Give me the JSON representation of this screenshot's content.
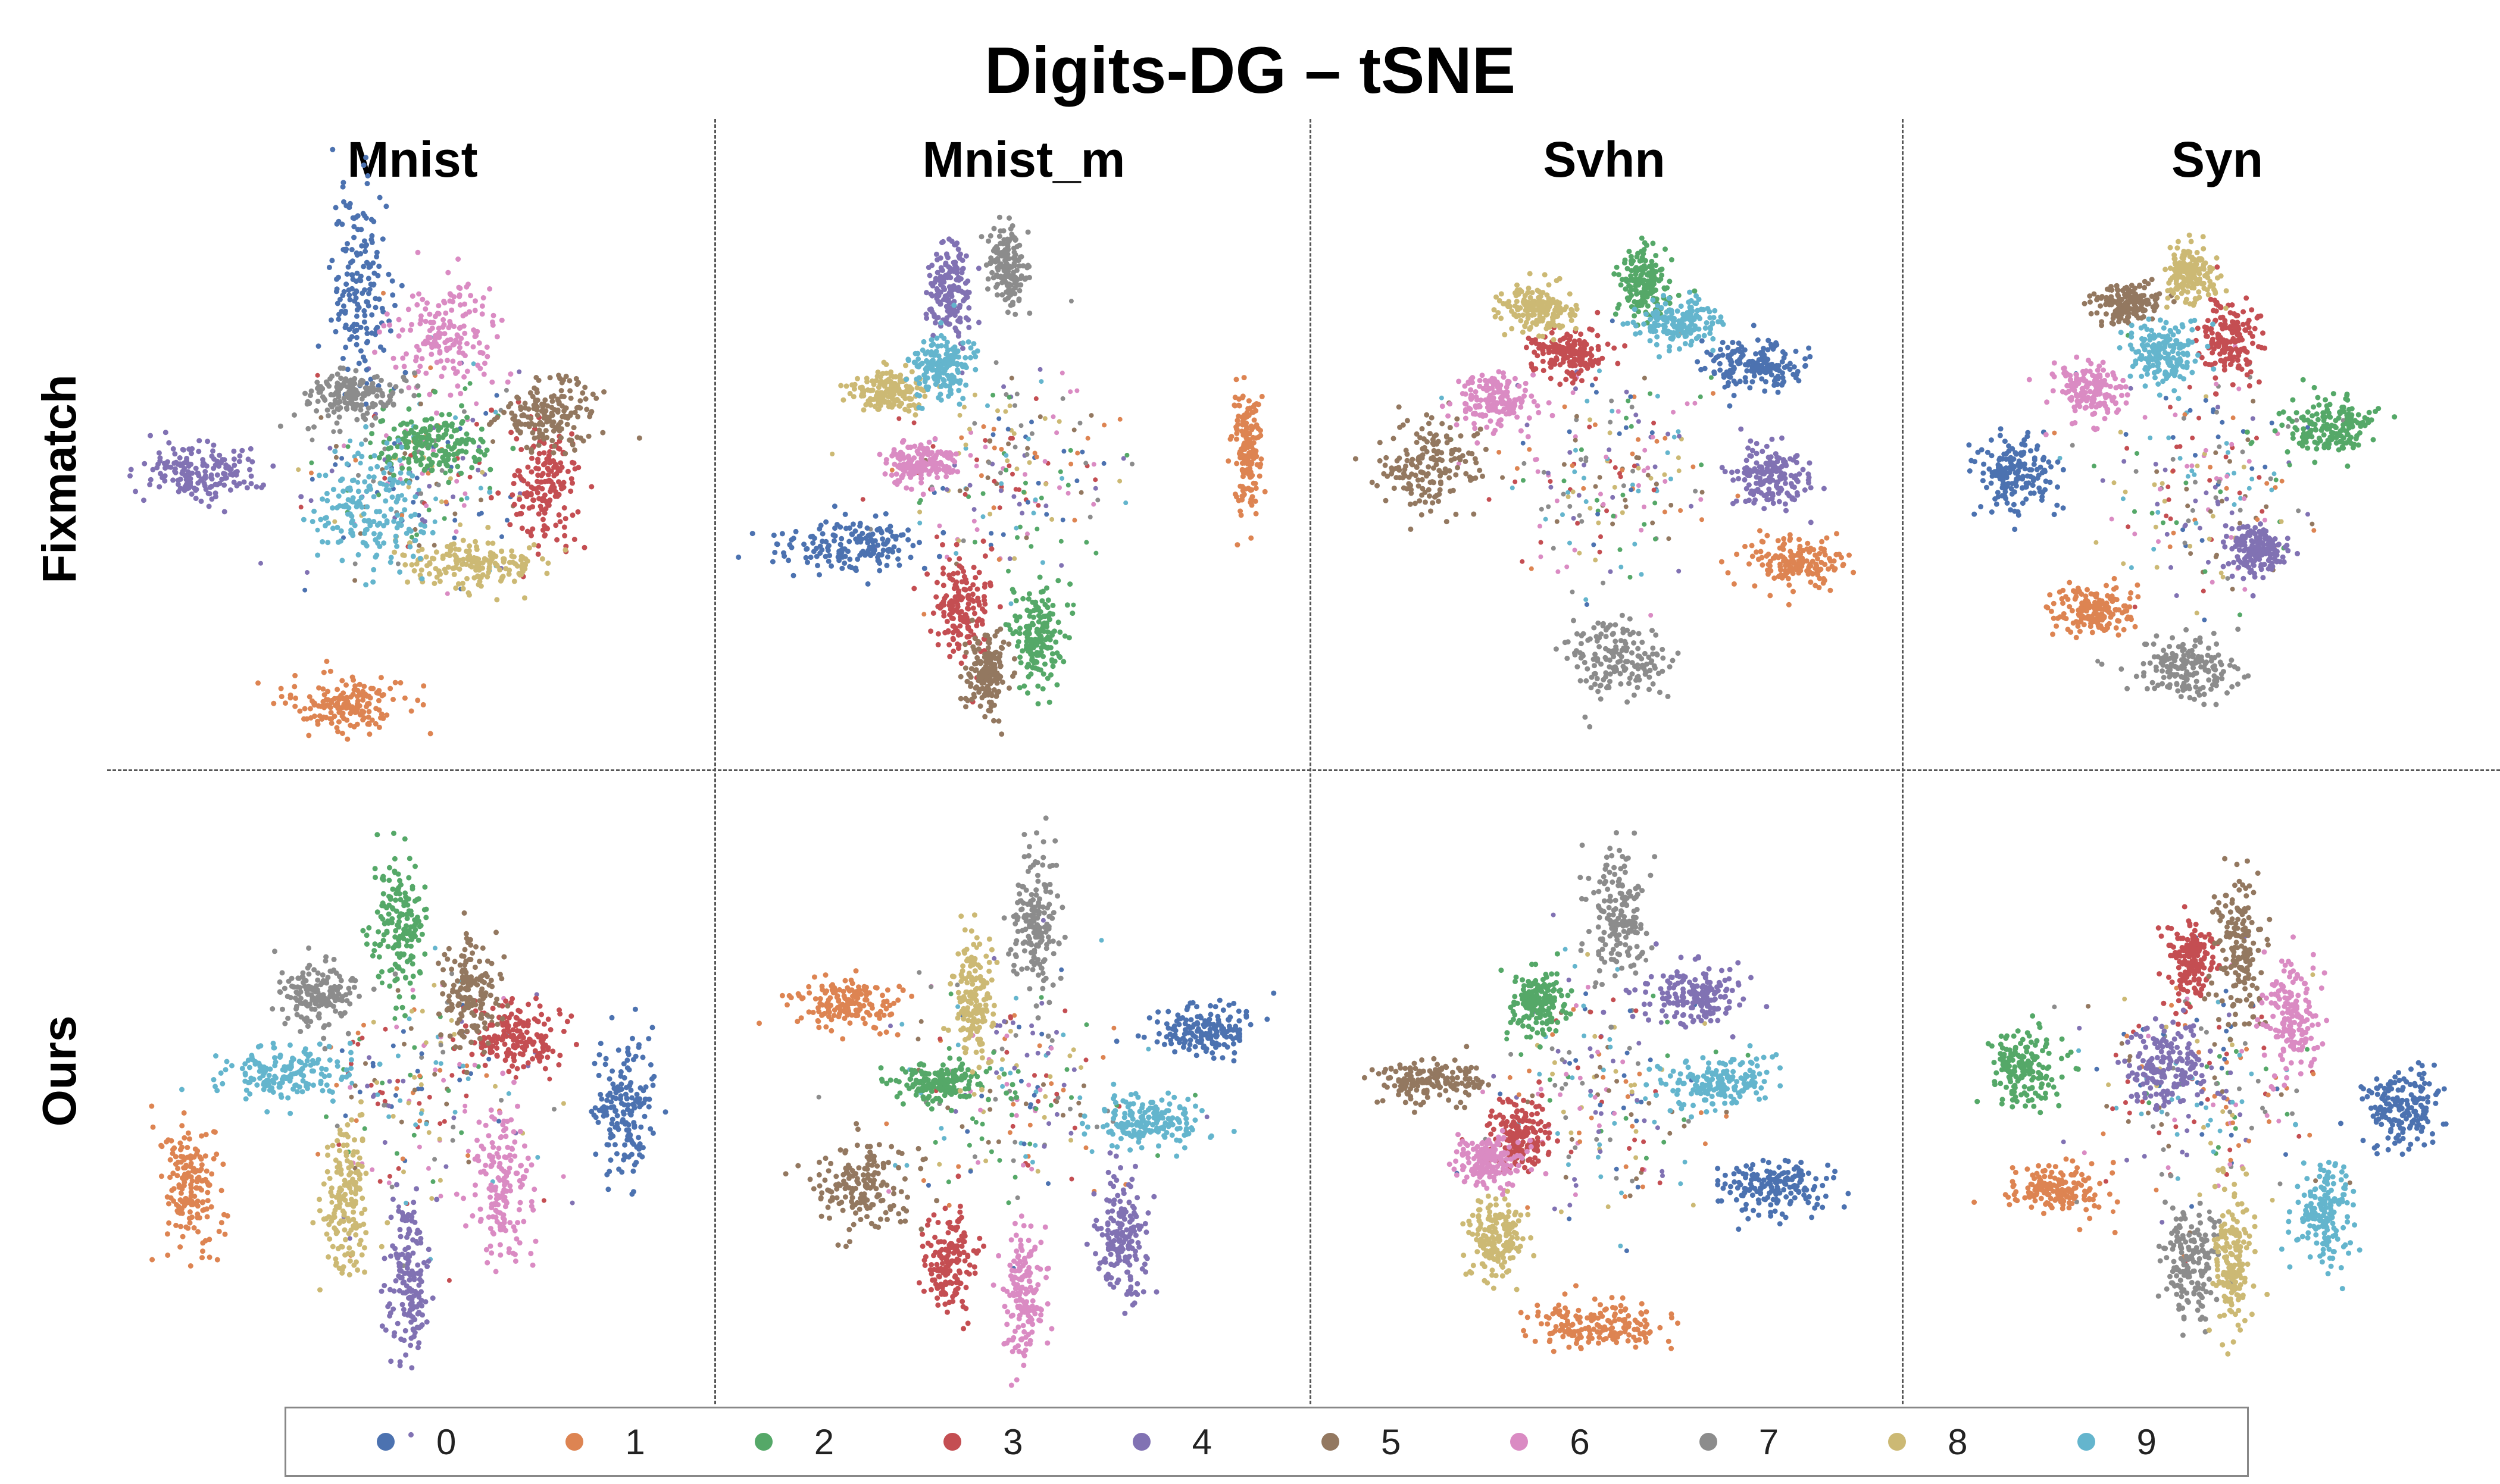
{
  "title": "Digits-DG –  tSNE",
  "columns": [
    "Mnist",
    "Mnist_m",
    "Svhn",
    "Syn"
  ],
  "rows": [
    "Fixmatch",
    "Ours"
  ],
  "legend": [
    {
      "label": "0",
      "color": "#4C72B0"
    },
    {
      "label": "1",
      "color": "#DD8452"
    },
    {
      "label": "2",
      "color": "#55A868"
    },
    {
      "label": "3",
      "color": "#C44E52"
    },
    {
      "label": "4",
      "color": "#8172B3"
    },
    {
      "label": "5",
      "color": "#937860"
    },
    {
      "label": "6",
      "color": "#DA8BC3"
    },
    {
      "label": "7",
      "color": "#8C8C8C"
    },
    {
      "label": "8",
      "color": "#CCB974"
    },
    {
      "label": "9",
      "color": "#64B5CD"
    }
  ],
  "chart_data": {
    "type": "scatter",
    "title": "Digits-DG –  tSNE",
    "grid": false,
    "legend_position": "bottom",
    "panels": [
      {
        "row": "Fixmatch",
        "column": "Mnist",
        "clusters": [
          {
            "class": "0",
            "x": -0.25,
            "y": 0.78,
            "sx": 0.06,
            "sy": 0.2
          },
          {
            "class": "1",
            "x": -0.32,
            "y": -0.92,
            "sx": 0.12,
            "sy": 0.06
          },
          {
            "class": "2",
            "x": 0.05,
            "y": 0.12,
            "sx": 0.12,
            "sy": 0.07
          },
          {
            "class": "3",
            "x": 0.5,
            "y": -0.05,
            "sx": 0.07,
            "sy": 0.12
          },
          {
            "class": "4",
            "x": -0.9,
            "y": 0.02,
            "sx": 0.12,
            "sy": 0.06
          },
          {
            "class": "5",
            "x": 0.52,
            "y": 0.25,
            "sx": 0.1,
            "sy": 0.07
          },
          {
            "class": "6",
            "x": 0.1,
            "y": 0.58,
            "sx": 0.11,
            "sy": 0.1
          },
          {
            "class": "7",
            "x": -0.28,
            "y": 0.32,
            "sx": 0.1,
            "sy": 0.05
          },
          {
            "class": "8",
            "x": 0.22,
            "y": -0.35,
            "sx": 0.14,
            "sy": 0.05
          },
          {
            "class": "9",
            "x": -0.22,
            "y": -0.15,
            "sx": 0.13,
            "sy": 0.12
          }
        ]
      },
      {
        "row": "Fixmatch",
        "column": "Mnist_m",
        "clusters": [
          {
            "class": "0",
            "x": -0.65,
            "y": -0.28,
            "sx": 0.15,
            "sy": 0.05
          },
          {
            "class": "1",
            "x": 0.95,
            "y": 0.1,
            "sx": 0.03,
            "sy": 0.12
          },
          {
            "class": "2",
            "x": 0.1,
            "y": -0.65,
            "sx": 0.05,
            "sy": 0.1
          },
          {
            "class": "3",
            "x": -0.2,
            "y": -0.55,
            "sx": 0.06,
            "sy": 0.1
          },
          {
            "class": "4",
            "x": -0.25,
            "y": 0.75,
            "sx": 0.05,
            "sy": 0.1
          },
          {
            "class": "5",
            "x": -0.1,
            "y": -0.8,
            "sx": 0.04,
            "sy": 0.08
          },
          {
            "class": "6",
            "x": -0.38,
            "y": 0.05,
            "sx": 0.07,
            "sy": 0.04
          },
          {
            "class": "7",
            "x": -0.02,
            "y": 0.85,
            "sx": 0.04,
            "sy": 0.08
          },
          {
            "class": "8",
            "x": -0.5,
            "y": 0.35,
            "sx": 0.07,
            "sy": 0.04
          },
          {
            "class": "9",
            "x": -0.28,
            "y": 0.45,
            "sx": 0.06,
            "sy": 0.06
          }
        ]
      },
      {
        "row": "Fixmatch",
        "column": "Svhn",
        "clusters": [
          {
            "class": "0",
            "x": 0.6,
            "y": 0.45,
            "sx": 0.1,
            "sy": 0.05
          },
          {
            "class": "1",
            "x": 0.75,
            "y": -0.35,
            "sx": 0.1,
            "sy": 0.05
          },
          {
            "class": "2",
            "x": 0.15,
            "y": 0.78,
            "sx": 0.05,
            "sy": 0.07
          },
          {
            "class": "3",
            "x": -0.15,
            "y": 0.5,
            "sx": 0.08,
            "sy": 0.05
          },
          {
            "class": "4",
            "x": 0.65,
            "y": 0.0,
            "sx": 0.08,
            "sy": 0.06
          },
          {
            "class": "5",
            "x": -0.72,
            "y": 0.05,
            "sx": 0.1,
            "sy": 0.1
          },
          {
            "class": "6",
            "x": -0.45,
            "y": 0.3,
            "sx": 0.08,
            "sy": 0.06
          },
          {
            "class": "7",
            "x": 0.05,
            "y": -0.75,
            "sx": 0.1,
            "sy": 0.08
          },
          {
            "class": "8",
            "x": -0.28,
            "y": 0.68,
            "sx": 0.07,
            "sy": 0.05
          },
          {
            "class": "9",
            "x": 0.3,
            "y": 0.62,
            "sx": 0.08,
            "sy": 0.05
          }
        ]
      },
      {
        "row": "Fixmatch",
        "column": "Syn",
        "clusters": [
          {
            "class": "0",
            "x": -0.75,
            "y": 0.0,
            "sx": 0.08,
            "sy": 0.08
          },
          {
            "class": "1",
            "x": -0.45,
            "y": -0.55,
            "sx": 0.08,
            "sy": 0.05
          },
          {
            "class": "2",
            "x": 0.5,
            "y": 0.2,
            "sx": 0.1,
            "sy": 0.06
          },
          {
            "class": "3",
            "x": 0.1,
            "y": 0.55,
            "sx": 0.06,
            "sy": 0.08
          },
          {
            "class": "4",
            "x": 0.22,
            "y": -0.3,
            "sx": 0.06,
            "sy": 0.05
          },
          {
            "class": "5",
            "x": -0.3,
            "y": 0.7,
            "sx": 0.07,
            "sy": 0.04
          },
          {
            "class": "6",
            "x": -0.45,
            "y": 0.35,
            "sx": 0.07,
            "sy": 0.06
          },
          {
            "class": "7",
            "x": -0.05,
            "y": -0.78,
            "sx": 0.1,
            "sy": 0.06
          },
          {
            "class": "8",
            "x": -0.05,
            "y": 0.82,
            "sx": 0.05,
            "sy": 0.06
          },
          {
            "class": "9",
            "x": -0.15,
            "y": 0.5,
            "sx": 0.07,
            "sy": 0.06
          }
        ]
      },
      {
        "row": "Ours",
        "column": "Mnist",
        "clusters": [
          {
            "class": "0",
            "x": 0.82,
            "y": -0.05,
            "sx": 0.06,
            "sy": 0.14
          },
          {
            "class": "1",
            "x": -0.95,
            "y": -0.35,
            "sx": 0.06,
            "sy": 0.12
          },
          {
            "class": "2",
            "x": -0.1,
            "y": 0.65,
            "sx": 0.05,
            "sy": 0.14
          },
          {
            "class": "3",
            "x": 0.38,
            "y": 0.22,
            "sx": 0.1,
            "sy": 0.06
          },
          {
            "class": "4",
            "x": -0.05,
            "y": -0.7,
            "sx": 0.04,
            "sy": 0.16
          },
          {
            "class": "5",
            "x": 0.18,
            "y": 0.38,
            "sx": 0.06,
            "sy": 0.1
          },
          {
            "class": "6",
            "x": 0.32,
            "y": -0.35,
            "sx": 0.06,
            "sy": 0.14
          },
          {
            "class": "7",
            "x": -0.42,
            "y": 0.38,
            "sx": 0.08,
            "sy": 0.06
          },
          {
            "class": "8",
            "x": -0.3,
            "y": -0.4,
            "sx": 0.05,
            "sy": 0.14
          },
          {
            "class": "9",
            "x": -0.55,
            "y": 0.08,
            "sx": 0.12,
            "sy": 0.05
          }
        ]
      },
      {
        "row": "Ours",
        "column": "Mnist_m",
        "clusters": [
          {
            "class": "0",
            "x": 0.78,
            "y": 0.25,
            "sx": 0.1,
            "sy": 0.05
          },
          {
            "class": "1",
            "x": -0.68,
            "y": 0.35,
            "sx": 0.1,
            "sy": 0.05
          },
          {
            "class": "2",
            "x": -0.3,
            "y": 0.05,
            "sx": 0.1,
            "sy": 0.04
          },
          {
            "class": "3",
            "x": -0.25,
            "y": -0.65,
            "sx": 0.05,
            "sy": 0.1
          },
          {
            "class": "4",
            "x": 0.45,
            "y": -0.55,
            "sx": 0.05,
            "sy": 0.12
          },
          {
            "class": "5",
            "x": -0.6,
            "y": -0.35,
            "sx": 0.1,
            "sy": 0.08
          },
          {
            "class": "6",
            "x": 0.05,
            "y": -0.75,
            "sx": 0.04,
            "sy": 0.12
          },
          {
            "class": "7",
            "x": 0.1,
            "y": 0.65,
            "sx": 0.05,
            "sy": 0.14
          },
          {
            "class": "8",
            "x": -0.15,
            "y": 0.35,
            "sx": 0.04,
            "sy": 0.12
          },
          {
            "class": "9",
            "x": 0.55,
            "y": -0.1,
            "sx": 0.12,
            "sy": 0.05
          }
        ]
      },
      {
        "row": "Ours",
        "column": "Svhn",
        "clusters": [
          {
            "class": "0",
            "x": 0.68,
            "y": -0.35,
            "sx": 0.1,
            "sy": 0.05
          },
          {
            "class": "1",
            "x": -0.05,
            "y": -0.88,
            "sx": 0.14,
            "sy": 0.05
          },
          {
            "class": "2",
            "x": -0.28,
            "y": 0.35,
            "sx": 0.06,
            "sy": 0.06
          },
          {
            "class": "3",
            "x": -0.35,
            "y": -0.15,
            "sx": 0.06,
            "sy": 0.06
          },
          {
            "class": "4",
            "x": 0.35,
            "y": 0.38,
            "sx": 0.1,
            "sy": 0.06
          },
          {
            "class": "5",
            "x": -0.72,
            "y": 0.05,
            "sx": 0.1,
            "sy": 0.04
          },
          {
            "class": "6",
            "x": -0.48,
            "y": -0.25,
            "sx": 0.07,
            "sy": 0.05
          },
          {
            "class": "7",
            "x": 0.05,
            "y": 0.7,
            "sx": 0.06,
            "sy": 0.12
          },
          {
            "class": "8",
            "x": -0.45,
            "y": -0.55,
            "sx": 0.06,
            "sy": 0.07
          },
          {
            "class": "9",
            "x": 0.45,
            "y": 0.05,
            "sx": 0.12,
            "sy": 0.05
          }
        ]
      },
      {
        "row": "Ours",
        "column": "Syn",
        "clusters": [
          {
            "class": "0",
            "x": 0.82,
            "y": -0.05,
            "sx": 0.08,
            "sy": 0.08
          },
          {
            "class": "1",
            "x": -0.6,
            "y": -0.35,
            "sx": 0.1,
            "sy": 0.05
          },
          {
            "class": "2",
            "x": -0.72,
            "y": 0.1,
            "sx": 0.07,
            "sy": 0.08
          },
          {
            "class": "3",
            "x": -0.05,
            "y": 0.5,
            "sx": 0.05,
            "sy": 0.08
          },
          {
            "class": "4",
            "x": -0.15,
            "y": 0.1,
            "sx": 0.08,
            "sy": 0.08
          },
          {
            "class": "5",
            "x": 0.15,
            "y": 0.55,
            "sx": 0.05,
            "sy": 0.14
          },
          {
            "class": "6",
            "x": 0.35,
            "y": 0.3,
            "sx": 0.06,
            "sy": 0.12
          },
          {
            "class": "7",
            "x": -0.05,
            "y": -0.65,
            "sx": 0.06,
            "sy": 0.12
          },
          {
            "class": "8",
            "x": 0.12,
            "y": -0.62,
            "sx": 0.04,
            "sy": 0.14
          },
          {
            "class": "9",
            "x": 0.5,
            "y": -0.45,
            "sx": 0.06,
            "sy": 0.1
          }
        ]
      }
    ]
  }
}
